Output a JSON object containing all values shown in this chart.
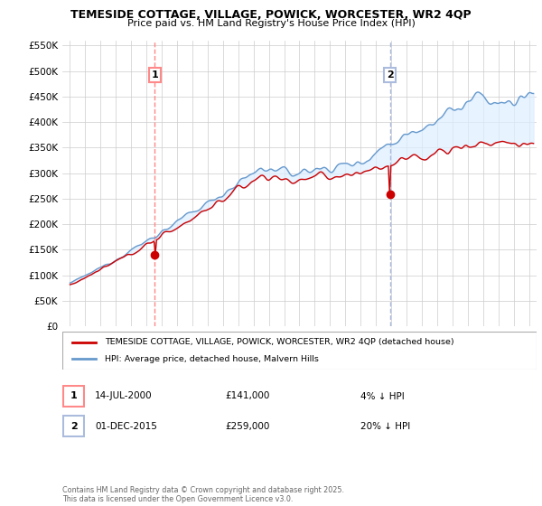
{
  "title": "TEMESIDE COTTAGE, VILLAGE, POWICK, WORCESTER, WR2 4QP",
  "subtitle": "Price paid vs. HM Land Registry's House Price Index (HPI)",
  "legend_line1": "TEMESIDE COTTAGE, VILLAGE, POWICK, WORCESTER, WR2 4QP (detached house)",
  "legend_line2": "HPI: Average price, detached house, Malvern Hills",
  "annotation1_date": "14-JUL-2000",
  "annotation1_price": "£141,000",
  "annotation1_hpi": "4% ↓ HPI",
  "annotation2_date": "01-DEC-2015",
  "annotation2_price": "£259,000",
  "annotation2_hpi": "20% ↓ HPI",
  "sale1_x": 2000.54,
  "sale1_y": 141000,
  "sale2_x": 2015.92,
  "sale2_y": 259000,
  "ylim": [
    0,
    560000
  ],
  "xlim": [
    1994.5,
    2025.5
  ],
  "yticks": [
    0,
    50000,
    100000,
    150000,
    200000,
    250000,
    300000,
    350000,
    400000,
    450000,
    500000,
    550000
  ],
  "copyright_text": "Contains HM Land Registry data © Crown copyright and database right 2025.\nThis data is licensed under the Open Government Licence v3.0.",
  "red_color": "#cc0000",
  "blue_color": "#6699cc",
  "vline1_color": "#ff8888",
  "vline2_color": "#aabbdd",
  "fill_color": "#ddeeff",
  "grid_color": "#cccccc",
  "background_color": "#ffffff"
}
